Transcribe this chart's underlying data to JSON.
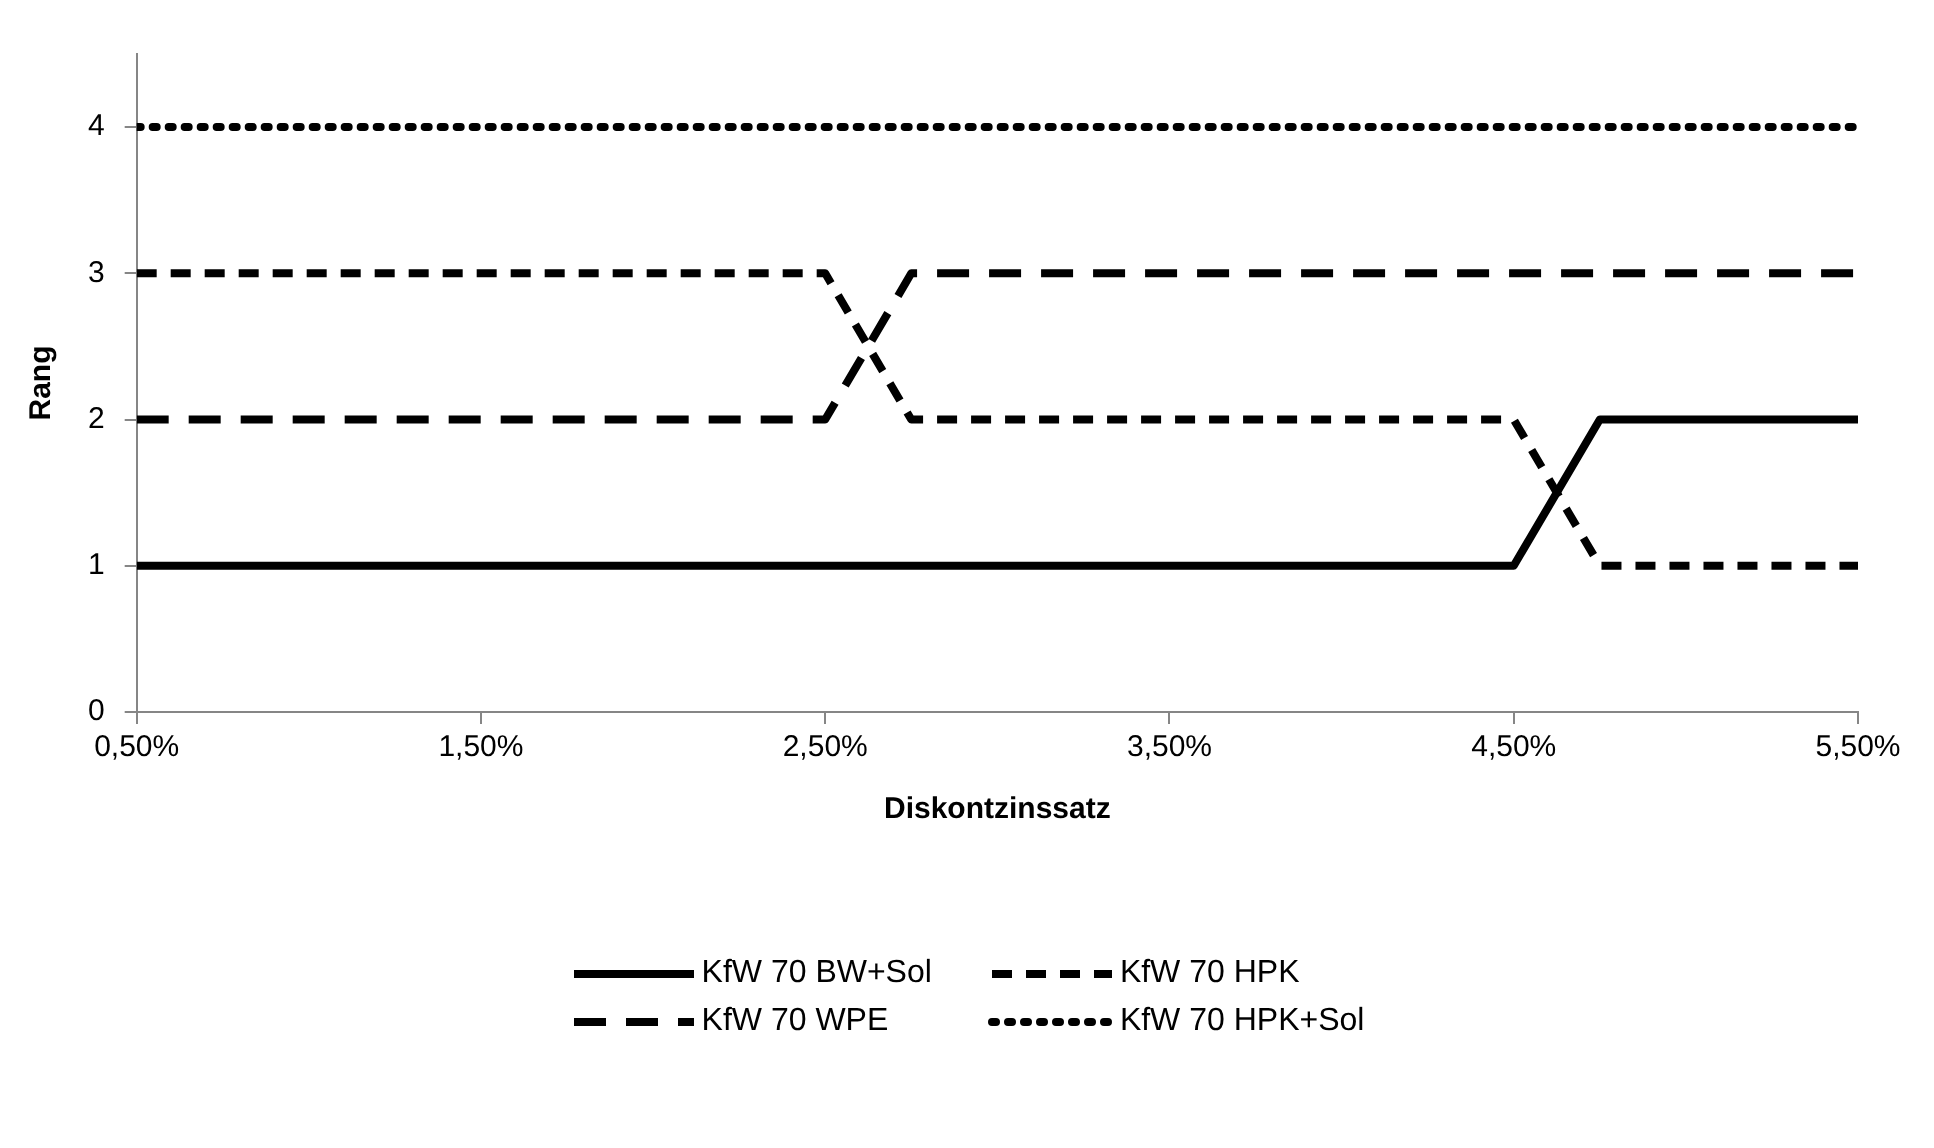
{
  "chart_data": {
    "type": "line",
    "xlabel": "Diskontzinssatz",
    "ylabel": "Rang",
    "xlim": [
      0.5,
      5.5
    ],
    "xticks": [
      {
        "value": 0.5,
        "label": "0,50%"
      },
      {
        "value": 1.5,
        "label": "1,50%"
      },
      {
        "value": 2.5,
        "label": "2,50%"
      },
      {
        "value": 3.5,
        "label": "3,50%"
      },
      {
        "value": 4.5,
        "label": "4,50%"
      },
      {
        "value": 5.5,
        "label": "5,50%"
      }
    ],
    "ylim": [
      0,
      4.5
    ],
    "yticks": [
      0,
      1,
      2,
      3,
      4
    ],
    "grid": false,
    "legend": "bottom",
    "marker": "none",
    "series": [
      {
        "name": "KfW 70 BW+Sol",
        "color": "#000000",
        "line_style": "solid",
        "x": [
          0.5,
          4.5,
          4.75,
          5.5
        ],
        "values": [
          1,
          1,
          2,
          2
        ]
      },
      {
        "name": "KfW 70 HPK",
        "color": "#000000",
        "line_style": "dashed",
        "x": [
          0.5,
          2.5,
          2.75,
          4.5,
          4.75,
          5.5
        ],
        "values": [
          3,
          3,
          2,
          2,
          1,
          1
        ]
      },
      {
        "name": "KfW 70 WPE",
        "color": "#000000",
        "line_style": "dashed",
        "x": [
          0.5,
          2.5,
          2.75,
          5.5
        ],
        "values": [
          2,
          2,
          3,
          3
        ]
      },
      {
        "name": "KfW 70 HPK+Sol",
        "color": "#000000",
        "line_style": "dotted",
        "x": [
          0.5,
          5.5
        ],
        "values": [
          4,
          4
        ]
      }
    ]
  }
}
